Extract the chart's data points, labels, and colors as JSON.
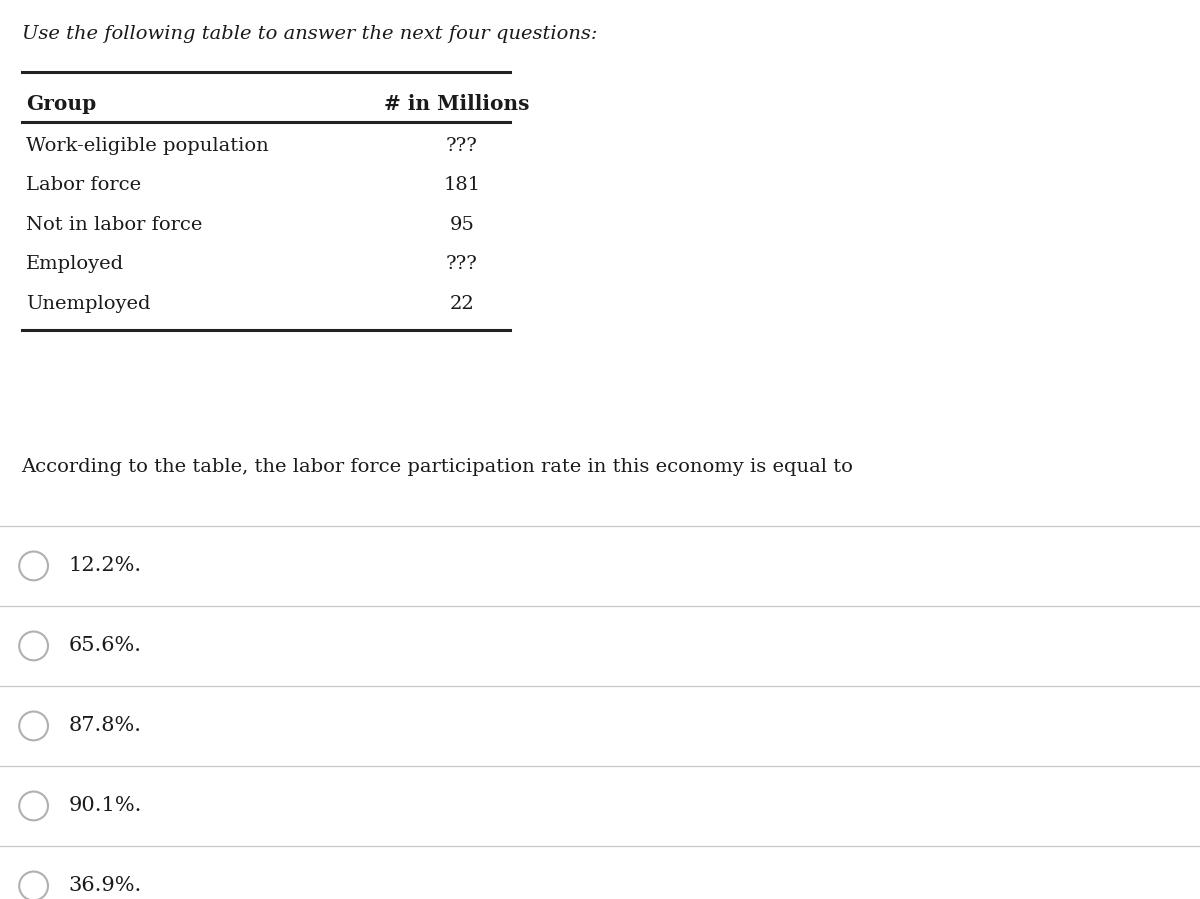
{
  "title": "Use the following table to answer the next four questions:",
  "table_headers": [
    "Group",
    "# in Millions"
  ],
  "table_rows": [
    [
      "Work-eligible population",
      "???"
    ],
    [
      "Labor force",
      "181"
    ],
    [
      "Not in labor force",
      "95"
    ],
    [
      "Employed",
      "???"
    ],
    [
      "Unemployed",
      "22"
    ]
  ],
  "question": "According to the table, the labor force participation rate in this economy is equal to",
  "choices": [
    "12.2%.",
    "65.6%.",
    "87.8%.",
    "90.1%.",
    "36.9%."
  ],
  "bg_color": "#ffffff",
  "text_color": "#1a1a1a",
  "line_color": "#222222",
  "divider_color": "#c8c8c8",
  "title_fontsize": 14,
  "header_fontsize": 14.5,
  "row_fontsize": 14,
  "question_fontsize": 14,
  "choice_fontsize": 15
}
